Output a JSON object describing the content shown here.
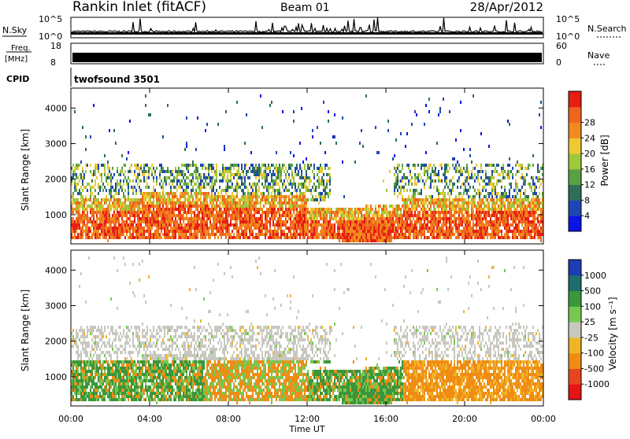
{
  "header": {
    "station": "Rankin Inlet (fitACF)",
    "beam": "Beam 01",
    "date": "28/Apr/2012"
  },
  "top_panels": {
    "nsky_label": "N.Sky",
    "nsky_ticks": [
      "10^5",
      "10^0"
    ],
    "nsearch_label": "N.Search",
    "nsearch_ticks": [
      "10^5",
      "10^0"
    ],
    "freq_label": "Freq.",
    "freq_unit": "[MHz]",
    "freq_ticks": [
      "18",
      "8"
    ],
    "nave_label": "Nave",
    "nave_ticks": [
      "60",
      "0"
    ],
    "cpid_label": "CPID",
    "cpid_value": "twofsound 3501"
  },
  "colors": {
    "power_scale": [
      "#0a14e6",
      "#1e46b4",
      "#2e6e5a",
      "#5aa046",
      "#a0c83c",
      "#f0c832",
      "#f08c1e",
      "#f0641e",
      "#e61e14"
    ],
    "velocity_scale": [
      "#1e3cb4",
      "#1e6e6e",
      "#3c963c",
      "#78c850",
      "#c8c8c0",
      "#f0b428",
      "#f08c14",
      "#e6461e",
      "#e61414"
    ]
  },
  "chart_data": [
    {
      "type": "heatmap",
      "name": "power",
      "ylabel": "Slant Range [km]",
      "y_ticks": [
        "1000",
        "2000",
        "3000",
        "4000"
      ],
      "ylim": [
        180,
        4560
      ],
      "colorbar_label": "Power [dB]",
      "colorbar_ticks": [
        "4",
        "8",
        "12",
        "16",
        "20",
        "24",
        "28"
      ],
      "colorbar_range": [
        0,
        32
      ]
    },
    {
      "type": "heatmap",
      "name": "velocity",
      "ylabel": "Slant Range [km]",
      "y_ticks": [
        "1000",
        "2000",
        "3000",
        "4000"
      ],
      "ylim": [
        180,
        4560
      ],
      "colorbar_label": "Velocity [m s⁻¹]",
      "colorbar_ticks": [
        "1000",
        "500",
        "100",
        "25",
        "-25",
        "-100",
        "-500",
        "-1000"
      ],
      "xlabel": "Time UT",
      "x_ticks": [
        "00:00",
        "04:00",
        "08:00",
        "12:00",
        "16:00",
        "20:00",
        "00:00"
      ]
    }
  ]
}
